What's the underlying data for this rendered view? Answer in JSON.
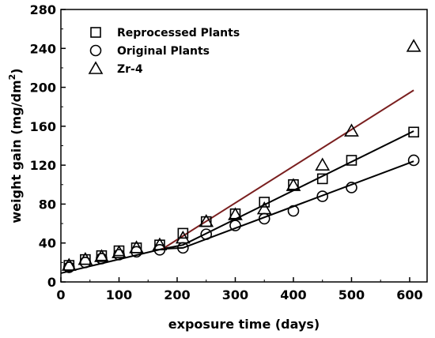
{
  "chart_data": {
    "type": "scatter",
    "title": "",
    "xlabel": "exposure time (days)",
    "ylabel": "weight gain (mg/dm",
    "ylabel_sup": "2",
    "ylabel_tail": ")",
    "xlim": [
      0,
      630
    ],
    "ylim": [
      0,
      280
    ],
    "x_ticks": [
      0,
      100,
      200,
      300,
      400,
      500,
      600
    ],
    "y_ticks": [
      0,
      40,
      80,
      120,
      160,
      200,
      240,
      280
    ],
    "grid": false,
    "legend_position": "top-left",
    "series": [
      {
        "name": "Reprocessed Plants",
        "marker": "square",
        "x": [
          14,
          42,
          70,
          100,
          130,
          170,
          210,
          250,
          300,
          350,
          400,
          450,
          500,
          607
        ],
        "y": [
          17,
          23,
          27,
          32,
          35,
          38,
          50,
          62,
          70,
          82,
          100,
          106,
          125,
          154
        ]
      },
      {
        "name": "Original Plants",
        "marker": "circle",
        "x": [
          14,
          42,
          70,
          100,
          130,
          170,
          210,
          250,
          300,
          350,
          400,
          450,
          500,
          607
        ],
        "y": [
          15,
          20,
          24,
          28,
          31,
          33,
          35,
          49,
          58,
          65,
          73,
          88,
          97,
          125
        ]
      },
      {
        "name": "Zr-4",
        "marker": "triangle",
        "x": [
          14,
          42,
          70,
          100,
          130,
          170,
          210,
          250,
          300,
          350,
          400,
          450,
          500,
          607
        ],
        "y": [
          17,
          23,
          26,
          30,
          35,
          38,
          45,
          62,
          69,
          75,
          99,
          120,
          155,
          242
        ]
      }
    ],
    "fit_lines": [
      {
        "color": "#000000",
        "points": [
          [
            0,
            9
          ],
          [
            175,
            34
          ],
          [
            210,
            38
          ],
          [
            607,
            155
          ]
        ]
      },
      {
        "color": "#000000",
        "points": [
          [
            175,
            34
          ],
          [
            210,
            35
          ],
          [
            607,
            124
          ]
        ]
      },
      {
        "color": "#7a1f1f",
        "points": [
          [
            175,
            34
          ],
          [
            607,
            197
          ]
        ]
      }
    ]
  }
}
